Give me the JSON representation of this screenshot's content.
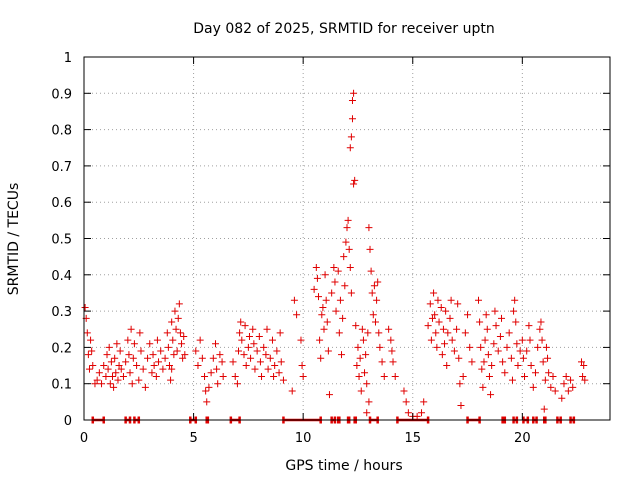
{
  "chart_data": {
    "type": "scatter",
    "title": "Day 082 of 2025, SRMTID for receiver uptn",
    "xlabel": "GPS time / hours",
    "ylabel": "SRMTID / TECUs",
    "xlim": [
      0,
      24
    ],
    "ylim": [
      0,
      1
    ],
    "xticks": [
      0,
      5,
      10,
      15,
      20
    ],
    "xtick_labels": [
      "0",
      "5",
      "10",
      "15",
      "20"
    ],
    "yticks": [
      0,
      0.1,
      0.2,
      0.3,
      0.4,
      0.5,
      0.6,
      0.7,
      0.8,
      0.9,
      1
    ],
    "ytick_labels": [
      "0",
      "0.1",
      "0.2",
      "0.3",
      "0.4",
      "0.5",
      "0.6",
      "0.7",
      "0.8",
      "0.9",
      "1"
    ],
    "grid": true,
    "marker": "+",
    "series": [
      {
        "name": "SRMTID",
        "color": "#e00000",
        "points": [
          [
            0.05,
            0.31
          ],
          [
            0.1,
            0.28
          ],
          [
            0.15,
            0.24
          ],
          [
            0.2,
            0.18
          ],
          [
            0.25,
            0.14
          ],
          [
            0.3,
            0.22
          ],
          [
            0.35,
            0.19
          ],
          [
            0.4,
            0.15
          ],
          [
            0.5,
            0.1
          ],
          [
            0.6,
            0.11
          ],
          [
            0.7,
            0.13
          ],
          [
            0.8,
            0.1
          ],
          [
            0.9,
            0.15
          ],
          [
            1.0,
            0.12
          ],
          [
            1.05,
            0.18
          ],
          [
            1.1,
            0.14
          ],
          [
            1.15,
            0.2
          ],
          [
            1.2,
            0.1
          ],
          [
            1.25,
            0.16
          ],
          [
            1.3,
            0.12
          ],
          [
            1.35,
            0.09
          ],
          [
            1.4,
            0.17
          ],
          [
            1.45,
            0.13
          ],
          [
            1.5,
            0.21
          ],
          [
            1.55,
            0.11
          ],
          [
            1.6,
            0.15
          ],
          [
            1.65,
            0.19
          ],
          [
            1.7,
            0.14
          ],
          [
            1.8,
            0.12
          ],
          [
            1.9,
            0.16
          ],
          [
            2.0,
            0.22
          ],
          [
            2.05,
            0.18
          ],
          [
            2.1,
            0.13
          ],
          [
            2.15,
            0.25
          ],
          [
            2.2,
            0.1
          ],
          [
            2.25,
            0.17
          ],
          [
            2.3,
            0.21
          ],
          [
            2.4,
            0.15
          ],
          [
            2.5,
            0.11
          ],
          [
            2.55,
            0.24
          ],
          [
            2.6,
            0.19
          ],
          [
            2.7,
            0.14
          ],
          [
            2.8,
            0.09
          ],
          [
            2.9,
            0.17
          ],
          [
            3.0,
            0.21
          ],
          [
            3.1,
            0.13
          ],
          [
            3.15,
            0.18
          ],
          [
            3.2,
            0.15
          ],
          [
            3.3,
            0.12
          ],
          [
            3.35,
            0.22
          ],
          [
            3.4,
            0.16
          ],
          [
            3.5,
            0.19
          ],
          [
            3.6,
            0.14
          ],
          [
            3.7,
            0.17
          ],
          [
            3.8,
            0.24
          ],
          [
            3.85,
            0.2
          ],
          [
            3.9,
            0.15
          ],
          [
            4.0,
            0.27
          ],
          [
            4.05,
            0.22
          ],
          [
            4.1,
            0.18
          ],
          [
            4.15,
            0.3
          ],
          [
            4.2,
            0.25
          ],
          [
            4.25,
            0.19
          ],
          [
            4.3,
            0.28
          ],
          [
            4.35,
            0.32
          ],
          [
            4.4,
            0.24
          ],
          [
            4.45,
            0.21
          ],
          [
            4.5,
            0.17
          ],
          [
            4.55,
            0.23
          ],
          [
            4.6,
            0.18
          ],
          [
            4.0,
            0.14
          ],
          [
            3.95,
            0.11
          ],
          [
            5.1,
            0.19
          ],
          [
            5.2,
            0.15
          ],
          [
            5.3,
            0.22
          ],
          [
            5.4,
            0.17
          ],
          [
            5.5,
            0.12
          ],
          [
            5.55,
            0.08
          ],
          [
            5.6,
            0.05
          ],
          [
            5.7,
            0.09
          ],
          [
            5.8,
            0.13
          ],
          [
            5.9,
            0.17
          ],
          [
            6.0,
            0.21
          ],
          [
            6.05,
            0.14
          ],
          [
            6.1,
            0.1
          ],
          [
            6.2,
            0.18
          ],
          [
            6.3,
            0.16
          ],
          [
            6.35,
            0.12
          ],
          [
            6.8,
            0.16
          ],
          [
            6.9,
            0.12
          ],
          [
            7.0,
            0.1
          ],
          [
            7.05,
            0.19
          ],
          [
            7.1,
            0.24
          ],
          [
            7.15,
            0.27
          ],
          [
            7.2,
            0.22
          ],
          [
            7.3,
            0.18
          ],
          [
            7.35,
            0.26
          ],
          [
            7.4,
            0.15
          ],
          [
            7.5,
            0.2
          ],
          [
            7.55,
            0.23
          ],
          [
            7.6,
            0.17
          ],
          [
            7.7,
            0.25
          ],
          [
            7.75,
            0.21
          ],
          [
            7.8,
            0.14
          ],
          [
            7.9,
            0.19
          ],
          [
            8.0,
            0.23
          ],
          [
            8.05,
            0.16
          ],
          [
            8.1,
            0.12
          ],
          [
            8.2,
            0.2
          ],
          [
            8.3,
            0.18
          ],
          [
            8.35,
            0.25
          ],
          [
            8.4,
            0.14
          ],
          [
            8.5,
            0.17
          ],
          [
            8.6,
            0.22
          ],
          [
            8.65,
            0.12
          ],
          [
            8.7,
            0.15
          ],
          [
            8.8,
            0.19
          ],
          [
            8.9,
            0.13
          ],
          [
            8.95,
            0.24
          ],
          [
            9.0,
            0.16
          ],
          [
            9.1,
            0.11
          ],
          [
            9.5,
            0.08
          ],
          [
            9.6,
            0.33
          ],
          [
            9.7,
            0.29
          ],
          [
            9.9,
            0.22
          ],
          [
            9.95,
            0.15
          ],
          [
            10.0,
            0.12
          ],
          [
            10.5,
            0.36
          ],
          [
            10.6,
            0.42
          ],
          [
            10.65,
            0.39
          ],
          [
            10.7,
            0.34
          ],
          [
            10.75,
            0.22
          ],
          [
            10.8,
            0.17
          ],
          [
            10.85,
            0.29
          ],
          [
            10.9,
            0.31
          ],
          [
            10.95,
            0.25
          ],
          [
            11.0,
            0.4
          ],
          [
            11.05,
            0.33
          ],
          [
            11.1,
            0.27
          ],
          [
            11.15,
            0.19
          ],
          [
            11.2,
            0.07
          ],
          [
            11.3,
            0.35
          ],
          [
            11.4,
            0.42
          ],
          [
            11.45,
            0.38
          ],
          [
            11.5,
            0.3
          ],
          [
            11.6,
            0.41
          ],
          [
            11.65,
            0.24
          ],
          [
            11.7,
            0.33
          ],
          [
            11.75,
            0.18
          ],
          [
            11.8,
            0.28
          ],
          [
            11.85,
            0.45
          ],
          [
            11.9,
            0.37
          ],
          [
            11.95,
            0.49
          ],
          [
            12.0,
            0.53
          ],
          [
            12.05,
            0.55
          ],
          [
            12.1,
            0.47
          ],
          [
            12.15,
            0.42
          ],
          [
            12.2,
            0.35
          ],
          [
            12.15,
            0.75
          ],
          [
            12.2,
            0.78
          ],
          [
            12.25,
            0.83
          ],
          [
            12.3,
            0.9
          ],
          [
            12.25,
            0.88
          ],
          [
            12.35,
            0.66
          ],
          [
            12.3,
            0.65
          ],
          [
            12.4,
            0.26
          ],
          [
            12.45,
            0.15
          ],
          [
            12.5,
            0.2
          ],
          [
            12.55,
            0.12
          ],
          [
            12.6,
            0.17
          ],
          [
            12.65,
            0.08
          ],
          [
            12.7,
            0.25
          ],
          [
            12.75,
            0.22
          ],
          [
            12.8,
            0.13
          ],
          [
            12.85,
            0.18
          ],
          [
            12.9,
            0.1
          ],
          [
            12.95,
            0.24
          ],
          [
            13.0,
            0.53
          ],
          [
            13.05,
            0.47
          ],
          [
            13.1,
            0.41
          ],
          [
            13.15,
            0.35
          ],
          [
            13.2,
            0.29
          ],
          [
            13.25,
            0.37
          ],
          [
            13.3,
            0.27
          ],
          [
            13.35,
            0.33
          ],
          [
            13.4,
            0.38
          ],
          [
            13.45,
            0.24
          ],
          [
            13.5,
            0.2
          ],
          [
            13.6,
            0.16
          ],
          [
            13.7,
            0.12
          ],
          [
            12.9,
            0.02
          ],
          [
            13.0,
            0.05
          ],
          [
            13.9,
            0.25
          ],
          [
            14.0,
            0.22
          ],
          [
            14.05,
            0.19
          ],
          [
            14.1,
            0.16
          ],
          [
            14.2,
            0.12
          ],
          [
            14.6,
            0.08
          ],
          [
            14.7,
            0.05
          ],
          [
            14.8,
            0.02
          ],
          [
            15.0,
            0.01
          ],
          [
            15.2,
            0.01
          ],
          [
            15.4,
            0.02
          ],
          [
            15.5,
            0.05
          ],
          [
            15.7,
            0.26
          ],
          [
            15.8,
            0.32
          ],
          [
            15.85,
            0.22
          ],
          [
            15.9,
            0.28
          ],
          [
            15.95,
            0.35
          ],
          [
            16.0,
            0.29
          ],
          [
            16.05,
            0.24
          ],
          [
            16.1,
            0.2
          ],
          [
            16.15,
            0.33
          ],
          [
            16.2,
            0.27
          ],
          [
            16.3,
            0.31
          ],
          [
            16.35,
            0.18
          ],
          [
            16.4,
            0.25
          ],
          [
            16.45,
            0.21
          ],
          [
            16.5,
            0.3
          ],
          [
            16.55,
            0.15
          ],
          [
            16.6,
            0.24
          ],
          [
            16.7,
            0.28
          ],
          [
            16.75,
            0.33
          ],
          [
            16.8,
            0.22
          ],
          [
            16.9,
            0.19
          ],
          [
            17.0,
            0.25
          ],
          [
            17.05,
            0.32
          ],
          [
            17.1,
            0.17
          ],
          [
            17.15,
            0.1
          ],
          [
            17.2,
            0.04
          ],
          [
            17.3,
            0.12
          ],
          [
            17.4,
            0.24
          ],
          [
            17.5,
            0.29
          ],
          [
            17.6,
            0.2
          ],
          [
            17.7,
            0.16
          ],
          [
            18.0,
            0.33
          ],
          [
            18.05,
            0.27
          ],
          [
            18.1,
            0.2
          ],
          [
            18.15,
            0.14
          ],
          [
            18.2,
            0.09
          ],
          [
            18.25,
            0.16
          ],
          [
            18.3,
            0.22
          ],
          [
            18.35,
            0.29
          ],
          [
            18.4,
            0.25
          ],
          [
            18.45,
            0.18
          ],
          [
            18.5,
            0.12
          ],
          [
            18.55,
            0.07
          ],
          [
            18.6,
            0.15
          ],
          [
            18.7,
            0.21
          ],
          [
            18.75,
            0.3
          ],
          [
            18.8,
            0.26
          ],
          [
            18.9,
            0.19
          ],
          [
            19.0,
            0.23
          ],
          [
            19.05,
            0.28
          ],
          [
            19.1,
            0.16
          ],
          [
            19.2,
            0.13
          ],
          [
            19.3,
            0.2
          ],
          [
            19.4,
            0.24
          ],
          [
            19.5,
            0.17
          ],
          [
            19.55,
            0.11
          ],
          [
            19.6,
            0.3
          ],
          [
            19.65,
            0.33
          ],
          [
            19.7,
            0.27
          ],
          [
            19.75,
            0.21
          ],
          [
            19.8,
            0.15
          ],
          [
            19.9,
            0.19
          ],
          [
            20.0,
            0.22
          ],
          [
            20.05,
            0.17
          ],
          [
            20.1,
            0.12
          ],
          [
            20.2,
            0.19
          ],
          [
            20.3,
            0.26
          ],
          [
            20.35,
            0.22
          ],
          [
            20.4,
            0.15
          ],
          [
            20.5,
            0.09
          ],
          [
            20.6,
            0.13
          ],
          [
            20.7,
            0.2
          ],
          [
            20.8,
            0.25
          ],
          [
            20.85,
            0.27
          ],
          [
            20.9,
            0.22
          ],
          [
            20.95,
            0.16
          ],
          [
            21.0,
            0.03
          ],
          [
            21.05,
            0.11
          ],
          [
            21.1,
            0.2
          ],
          [
            21.15,
            0.17
          ],
          [
            21.2,
            0.13
          ],
          [
            21.3,
            0.09
          ],
          [
            21.4,
            0.12
          ],
          [
            21.5,
            0.08
          ],
          [
            21.8,
            0.06
          ],
          [
            21.9,
            0.1
          ],
          [
            22.0,
            0.12
          ],
          [
            22.1,
            0.08
          ],
          [
            22.2,
            0.11
          ],
          [
            22.3,
            0.09
          ],
          [
            22.7,
            0.16
          ],
          [
            22.75,
            0.12
          ],
          [
            22.8,
            0.15
          ],
          [
            22.85,
            0.11
          ]
        ],
        "zero_runs": [
          [
            0.4,
            0.9
          ],
          [
            1.9,
            2.1
          ],
          [
            2.3,
            2.5
          ],
          [
            4.85,
            5.1
          ],
          [
            5.6,
            5.65
          ],
          [
            6.7,
            7.1
          ],
          [
            9.1,
            10.8
          ],
          [
            11.3,
            11.45
          ],
          [
            11.6,
            11.65
          ],
          [
            12.05,
            12.1
          ],
          [
            12.35,
            12.4
          ],
          [
            13.05,
            13.4
          ],
          [
            14.3,
            15.7
          ],
          [
            17.5,
            18.05
          ],
          [
            19.1,
            19.2
          ],
          [
            19.6,
            19.75
          ],
          [
            20.05,
            20.25
          ],
          [
            20.5,
            20.65
          ],
          [
            21.0,
            21.05
          ],
          [
            21.6,
            21.75
          ],
          [
            22.2,
            22.35
          ]
        ]
      }
    ]
  }
}
